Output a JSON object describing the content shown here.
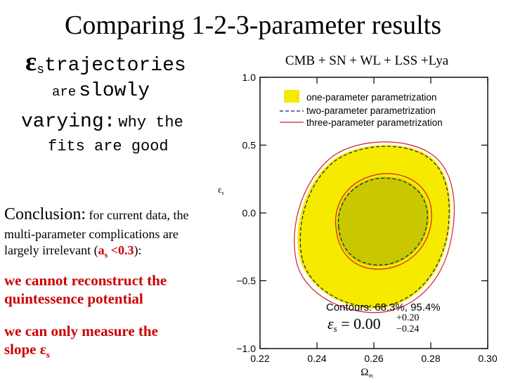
{
  "slide": {
    "title": "Comparing 1-2-3-parameter results",
    "left": {
      "eps_symbol": "ε",
      "eps_sub": "s",
      "line1_word": "trajectories",
      "line2_small": "are",
      "line2_big": "slowly",
      "line3_big": "varying:",
      "line3_small": "why the",
      "line4": "fits are good",
      "conclusion_head": "Conclusion:",
      "conclusion_rest": " for current data, the",
      "conclusion_line2": "multi-parameter complications are",
      "conclusion_line3_a": "largely irrelevant (",
      "conclusion_a": "a",
      "conclusion_a_sub": "s",
      "conclusion_lt": " <0.3",
      "conclusion_line3_b": "):",
      "red1_line1": "we cannot reconstruct the",
      "red1_line2": "quintessence potential",
      "red2_line1": "we can only measure the",
      "red2_line2_a": "slope ",
      "red2_eps": "ε",
      "red2_sub": "s"
    }
  },
  "chart_data": {
    "type": "contour",
    "title": "CMB + SN + WL + LSS +Lya",
    "xlabel": "Ω",
    "xlabel_sub": "m",
    "ylabel": "ε",
    "ylabel_sub": "s",
    "xlim": [
      0.22,
      0.3
    ],
    "ylim": [
      -1.0,
      1.0
    ],
    "xticks": [
      "0.22",
      "0.24",
      "0.26",
      "0.28",
      "0.30"
    ],
    "yticks": [
      "1.0",
      "0.5",
      "0.0",
      "−0.5",
      "−1.0"
    ],
    "legend": [
      {
        "label": "one-parameter parametrization",
        "style": "filled",
        "color": "#f5ea00"
      },
      {
        "label": "two-parameter parametrization",
        "style": "dashed",
        "color": "#1a1a60"
      },
      {
        "label": "three-parameter parametrization",
        "style": "solid",
        "color": "#d42020"
      }
    ],
    "legend_position": "top-right",
    "contour_levels": "Contours: 68.3%, 95.4%",
    "result_lhs": "ε",
    "result_sub": "s",
    "result_eq": " = 0.00",
    "result_plus": "+0.20",
    "result_minus": "−0.24",
    "colors": {
      "outer": "#f5ea00",
      "inner": "#c9c800",
      "dashed": "#1a1a60",
      "solid": "#d42020"
    }
  }
}
